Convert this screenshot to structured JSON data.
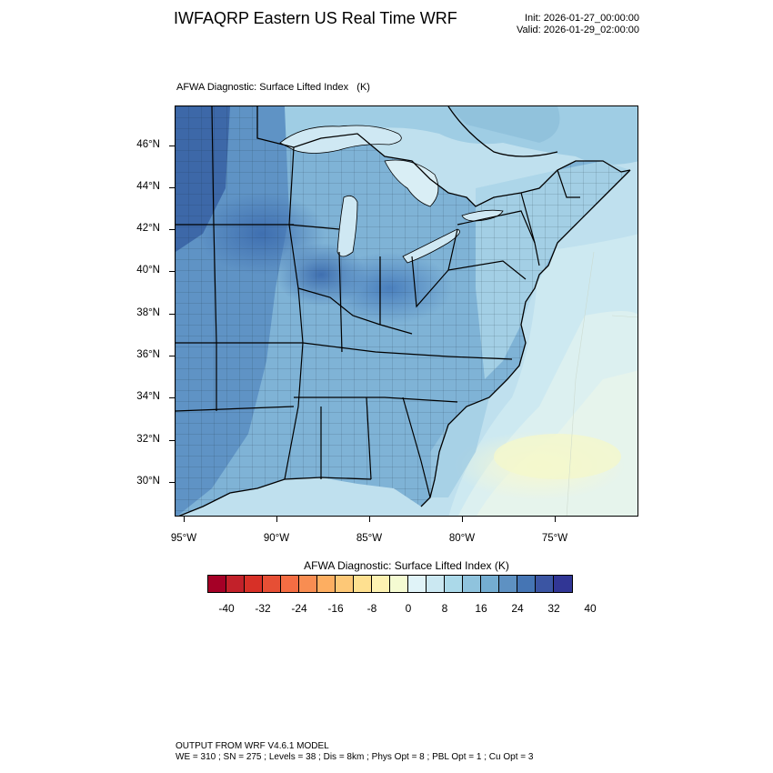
{
  "header": {
    "title": "IWFAQRP Eastern US Real Time WRF",
    "init": "Init: 2026-01-27_00:00:00",
    "valid": "Valid: 2026-01-29_02:00:00"
  },
  "plot": {
    "subtitle": "AFWA Diagnostic: Surface Lifted Index   (K)",
    "lat_labels": [
      "46°N",
      "44°N",
      "42°N",
      "40°N",
      "38°N",
      "36°N",
      "34°N",
      "32°N",
      "30°N"
    ],
    "lon_labels": [
      "95°W",
      "90°W",
      "85°W",
      "80°W",
      "75°W"
    ]
  },
  "colorbar": {
    "title": "AFWA Diagnostic: Surface Lifted Index  (K)",
    "colors": [
      "#a50026",
      "#c2212a",
      "#d73027",
      "#e64f35",
      "#f46d43",
      "#f88d52",
      "#fdae61",
      "#fdc877",
      "#fee090",
      "#fdf2b2",
      "#f5fbd2",
      "#e0f3f8",
      "#cbe8f2",
      "#abd9e9",
      "#8fc3dd",
      "#74add1",
      "#5e91c2",
      "#4575b4",
      "#3b55a3",
      "#313695"
    ],
    "labels": [
      "-40",
      "-32",
      "-24",
      "-16",
      "-8",
      "0",
      "8",
      "16",
      "24",
      "32",
      "40"
    ]
  },
  "footer": {
    "line1": "OUTPUT FROM WRF V4.6.1 MODEL",
    "line2": "WE = 310 ; SN = 275 ; Levels = 38 ; Dis = 8km ; Phys Opt = 8 ; PBL Opt = 1 ; Cu Opt = 3"
  }
}
